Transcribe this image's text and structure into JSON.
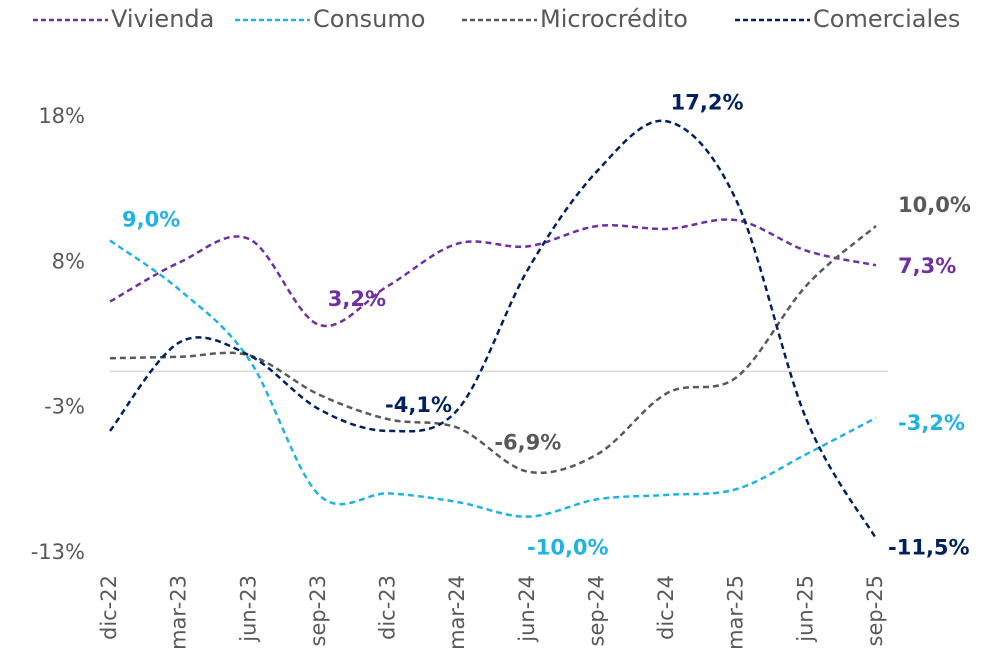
{
  "chart_data": {
    "type": "line",
    "categories": [
      "dic-22",
      "mar-23",
      "jun-23",
      "sep-23",
      "dic-23",
      "mar-24",
      "jun-24",
      "sep-24",
      "dic-24",
      "mar-25",
      "jun-25",
      "sep-25"
    ],
    "series": [
      {
        "name": "Vivienda",
        "color": "#7030a0",
        "values": [
          4.8,
          7.5,
          9.1,
          3.2,
          5.9,
          8.8,
          8.6,
          10.0,
          9.8,
          10.4,
          8.3,
          7.3
        ],
        "value_labels": [
          null,
          null,
          null,
          "3,2%",
          null,
          null,
          null,
          null,
          null,
          null,
          null,
          "7,3%"
        ]
      },
      {
        "name": "Consumo",
        "color": "#1fb3e5",
        "values": [
          9.0,
          5.6,
          0.8,
          -8.5,
          -8.4,
          -9.0,
          -10.0,
          -8.8,
          -8.5,
          -8.1,
          -5.7,
          -3.2
        ],
        "value_labels": [
          "9,0%",
          null,
          null,
          null,
          null,
          null,
          "-10,0%",
          null,
          null,
          null,
          null,
          "-3,2%"
        ]
      },
      {
        "name": "Microcrédito",
        "color": "#595959",
        "values": [
          0.9,
          1.0,
          1.1,
          -1.6,
          -3.3,
          -3.9,
          -6.9,
          -5.7,
          -1.5,
          -0.4,
          5.9,
          10.0
        ],
        "value_labels": [
          null,
          null,
          null,
          null,
          null,
          null,
          "-6,9%",
          null,
          null,
          null,
          null,
          "10,0%"
        ]
      },
      {
        "name": "Comerciales",
        "color": "#002060",
        "values": [
          -4.1,
          2.0,
          1.1,
          -2.6,
          -4.1,
          -2.6,
          7.0,
          13.8,
          17.2,
          11.7,
          -3.3,
          -11.5
        ],
        "value_labels": [
          null,
          null,
          null,
          null,
          "-4,1%",
          null,
          null,
          null,
          "17,2%",
          null,
          null,
          "-11,5%"
        ]
      }
    ],
    "ylim": [
      -12.5,
      17.5
    ],
    "yticks": [
      {
        "value": 17.5,
        "label": "18%"
      },
      {
        "value": 7.5,
        "label": "8%"
      },
      {
        "value": -2.5,
        "label": "-3%"
      },
      {
        "value": -12.5,
        "label": "-13%"
      }
    ],
    "legend": "top"
  }
}
